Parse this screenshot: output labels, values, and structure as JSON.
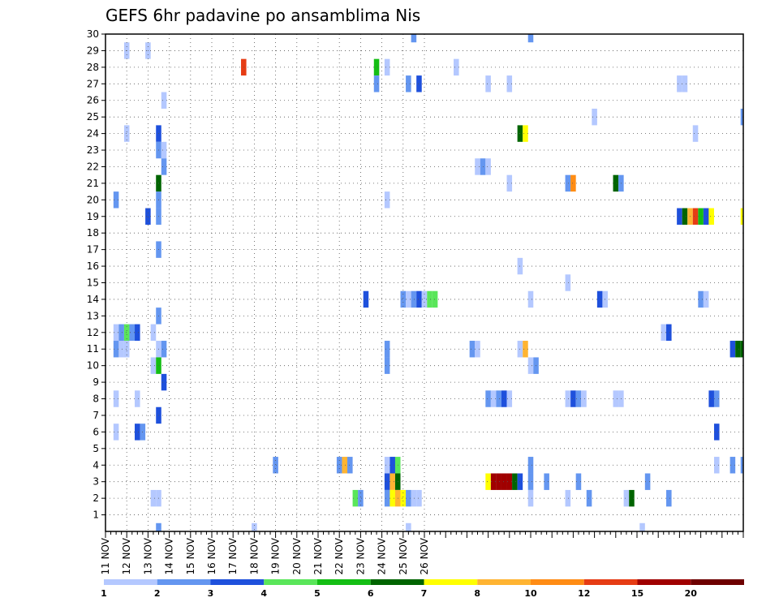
{
  "chart_data": {
    "type": "heatmap",
    "title": "GEFS 6hr padavine po ansamblima Nis",
    "x_ticks": [
      "11 NOV",
      "12 NOV",
      "13 NOV",
      "14 NOV",
      "15 NOV",
      "16 NOV",
      "17 NOV",
      "18 NOV",
      "19 NOV",
      "20 NOV",
      "21 NOV",
      "22 NOV",
      "23 NOV",
      "24 NOV",
      "25 NOV",
      "26 NOV"
    ],
    "y_ticks": [
      1,
      2,
      3,
      4,
      5,
      6,
      7,
      8,
      9,
      10,
      11,
      12,
      13,
      14,
      15,
      16,
      17,
      18,
      19,
      20,
      21,
      22,
      23,
      24,
      25,
      26,
      27,
      28,
      29,
      30
    ],
    "x_unit": "6-hourly steps from 11 NOV (4 per day)",
    "y_range": [
      0,
      30
    ],
    "grid": true,
    "colorbar": {
      "labels": [
        "1",
        "2",
        "3",
        "4",
        "5",
        "6",
        "7",
        "8",
        "10",
        "12",
        "15",
        "20"
      ],
      "colors": [
        "#b4c8ff",
        "#6496f0",
        "#1e50dc",
        "#5ae65a",
        "#14be14",
        "#006400",
        "#ffff00",
        "#ffb432",
        "#ff8c14",
        "#e63c14",
        "#a00000",
        "#6e0000"
      ]
    },
    "color_scale": [
      "#b4c8ff",
      "#6496f0",
      "#1e50dc",
      "#5ae65a",
      "#14be14",
      "#006400",
      "#ffff00",
      "#ffb432",
      "#ff8c14",
      "#e63c14",
      "#a00000"
    ],
    "cells": [
      [
        28,
        0,
        1
      ],
      [
        57,
        0,
        1
      ],
      [
        4,
        29,
        1
      ],
      [
        8,
        29,
        1
      ],
      [
        26,
        28,
        10
      ],
      [
        51,
        28,
        5
      ],
      [
        53,
        28,
        1
      ],
      [
        66,
        28,
        1
      ],
      [
        51,
        27,
        2
      ],
      [
        57,
        27,
        2
      ],
      [
        59,
        27,
        3
      ],
      [
        72,
        27,
        1
      ],
      [
        76,
        27,
        1
      ],
      [
        108,
        27,
        1
      ],
      [
        109,
        27,
        1
      ],
      [
        11,
        26,
        1
      ],
      [
        92,
        25,
        1
      ],
      [
        120,
        25,
        2
      ],
      [
        4,
        24,
        1
      ],
      [
        10,
        24,
        3
      ],
      [
        78,
        24,
        6
      ],
      [
        79,
        24,
        7
      ],
      [
        111,
        24,
        1
      ],
      [
        10,
        23,
        2
      ],
      [
        11,
        23,
        1
      ],
      [
        11,
        22,
        2
      ],
      [
        70,
        22,
        1
      ],
      [
        71,
        22,
        2
      ],
      [
        72,
        22,
        1
      ],
      [
        10,
        21,
        6
      ],
      [
        76,
        21,
        1
      ],
      [
        87,
        21,
        2
      ],
      [
        88,
        21,
        9
      ],
      [
        96,
        21,
        6
      ],
      [
        97,
        21,
        2
      ],
      [
        2,
        20,
        2
      ],
      [
        10,
        20,
        2
      ],
      [
        53,
        20,
        1
      ],
      [
        8,
        19,
        3
      ],
      [
        10,
        19,
        2
      ],
      [
        108,
        19,
        3
      ],
      [
        109,
        19,
        6
      ],
      [
        110,
        19,
        8
      ],
      [
        111,
        19,
        10
      ],
      [
        112,
        19,
        5
      ],
      [
        113,
        19,
        3
      ],
      [
        114,
        19,
        7
      ],
      [
        10,
        17,
        2
      ],
      [
        78,
        16,
        1
      ],
      [
        87,
        15,
        1
      ],
      [
        49,
        14,
        3
      ],
      [
        56,
        14,
        2
      ],
      [
        57,
        14,
        1
      ],
      [
        58,
        14,
        2
      ],
      [
        59,
        14,
        3
      ],
      [
        60,
        14,
        1
      ],
      [
        61,
        14,
        4
      ],
      [
        62,
        14,
        4
      ],
      [
        80,
        14,
        1
      ],
      [
        93,
        14,
        3
      ],
      [
        94,
        14,
        1
      ],
      [
        112,
        14,
        2
      ],
      [
        113,
        14,
        1
      ],
      [
        10,
        13,
        2
      ],
      [
        2,
        12,
        1
      ],
      [
        3,
        12,
        2
      ],
      [
        4,
        12,
        4
      ],
      [
        5,
        12,
        2
      ],
      [
        6,
        12,
        3
      ],
      [
        9,
        12,
        1
      ],
      [
        105,
        12,
        1
      ],
      [
        106,
        12,
        3
      ],
      [
        2,
        11,
        2
      ],
      [
        3,
        11,
        1
      ],
      [
        4,
        11,
        1
      ],
      [
        10,
        11,
        1
      ],
      [
        11,
        11,
        2
      ],
      [
        53,
        11,
        2
      ],
      [
        69,
        11,
        2
      ],
      [
        70,
        11,
        1
      ],
      [
        78,
        11,
        1
      ],
      [
        79,
        11,
        8
      ],
      [
        118,
        11,
        3
      ],
      [
        119,
        11,
        6
      ],
      [
        9,
        10,
        1
      ],
      [
        10,
        10,
        5
      ],
      [
        53,
        10,
        2
      ],
      [
        80,
        10,
        1
      ],
      [
        81,
        10,
        2
      ],
      [
        11,
        9,
        3
      ],
      [
        2,
        8,
        1
      ],
      [
        6,
        8,
        1
      ],
      [
        72,
        8,
        2
      ],
      [
        73,
        8,
        1
      ],
      [
        74,
        8,
        2
      ],
      [
        75,
        8,
        3
      ],
      [
        76,
        8,
        1
      ],
      [
        87,
        8,
        1
      ],
      [
        88,
        8,
        3
      ],
      [
        89,
        8,
        2
      ],
      [
        90,
        8,
        1
      ],
      [
        96,
        8,
        1
      ],
      [
        97,
        8,
        1
      ],
      [
        114,
        8,
        3
      ],
      [
        115,
        8,
        2
      ],
      [
        10,
        7,
        3
      ],
      [
        2,
        6,
        1
      ],
      [
        6,
        6,
        3
      ],
      [
        7,
        6,
        2
      ],
      [
        115,
        6,
        3
      ],
      [
        32,
        4,
        2
      ],
      [
        44,
        4,
        2
      ],
      [
        45,
        4,
        8
      ],
      [
        46,
        4,
        2
      ],
      [
        53,
        4,
        1
      ],
      [
        54,
        4,
        3
      ],
      [
        55,
        4,
        4
      ],
      [
        80,
        4,
        2
      ],
      [
        115,
        4,
        1
      ],
      [
        118,
        4,
        2
      ],
      [
        53,
        3,
        3
      ],
      [
        54,
        3,
        8
      ],
      [
        55,
        3,
        6
      ],
      [
        72,
        3,
        7
      ],
      [
        73,
        3,
        11
      ],
      [
        74,
        3,
        11
      ],
      [
        75,
        3,
        11
      ],
      [
        76,
        3,
        11
      ],
      [
        77,
        3,
        6
      ],
      [
        78,
        3,
        3
      ],
      [
        80,
        3,
        2
      ],
      [
        83,
        3,
        2
      ],
      [
        89,
        3,
        2
      ],
      [
        102,
        3,
        2
      ],
      [
        9,
        2,
        1
      ],
      [
        10,
        2,
        1
      ],
      [
        47,
        2,
        4
      ],
      [
        48,
        2,
        2
      ],
      [
        53,
        2,
        2
      ],
      [
        54,
        2,
        7
      ],
      [
        55,
        2,
        8
      ],
      [
        56,
        2,
        7
      ],
      [
        57,
        2,
        2
      ],
      [
        58,
        2,
        1
      ],
      [
        59,
        2,
        1
      ],
      [
        80,
        2,
        1
      ],
      [
        87,
        2,
        1
      ],
      [
        91,
        2,
        2
      ],
      [
        98,
        2,
        1
      ],
      [
        99,
        2,
        6
      ],
      [
        106,
        2,
        2
      ],
      [
        10,
        0,
        2
      ],
      [
        101,
        0,
        1
      ],
      [
        58,
        30,
        2
      ],
      [
        80,
        30,
        2
      ],
      [
        120,
        4,
        2
      ],
      [
        120,
        11,
        6
      ],
      [
        120,
        19,
        7
      ]
    ]
  }
}
